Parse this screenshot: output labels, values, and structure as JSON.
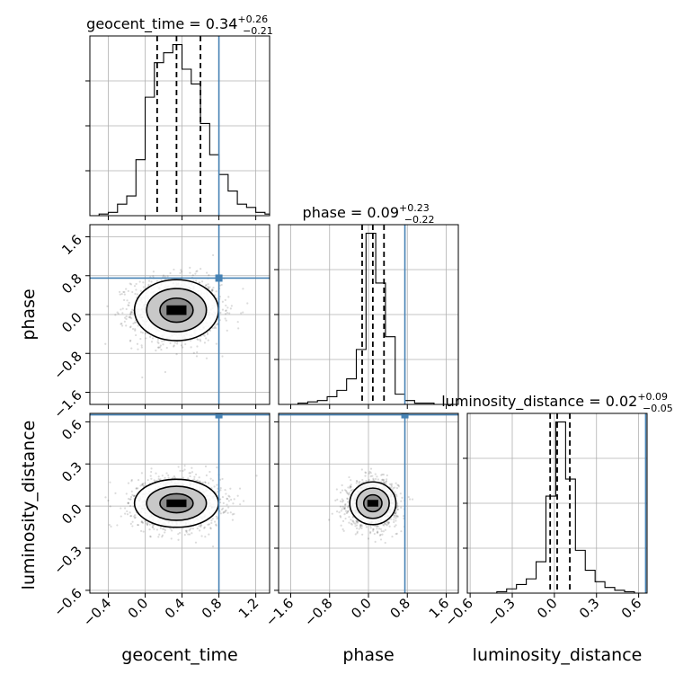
{
  "chart_data": {
    "type": "corner",
    "parameters": [
      "geocent_time",
      "phase",
      "luminosity_distance"
    ],
    "truths": [
      0.8,
      0.75,
      0.65
    ],
    "truth_color": "#4682b4",
    "line_color": "#000000",
    "titles": [
      {
        "name": "geocent_time",
        "median": "0.34",
        "plus": "+0.26",
        "minus": "−0.21"
      },
      {
        "name": "phase",
        "median": "0.09",
        "plus": "+0.23",
        "minus": "−0.22"
      },
      {
        "name": "luminosity_distance",
        "median": "0.02",
        "plus": "+0.09",
        "minus": "−0.05"
      }
    ],
    "ranges": [
      [
        -0.6,
        1.35
      ],
      [
        -1.85,
        1.85
      ],
      [
        -0.62,
        0.66
      ]
    ],
    "ticks": [
      {
        "values": [
          -0.4,
          0.0,
          0.4,
          0.8,
          1.2
        ],
        "labels": [
          "−0.4",
          "0.0",
          "0.4",
          "0.8",
          "1.2"
        ]
      },
      {
        "values": [
          -1.6,
          -0.8,
          0.0,
          0.8,
          1.6
        ],
        "labels": [
          "−1.6",
          "−0.8",
          "0.0",
          "0.8",
          "1.6"
        ]
      },
      {
        "values": [
          -0.6,
          -0.3,
          0.0,
          0.3,
          0.6
        ],
        "labels": [
          "−0.6",
          "−0.3",
          "0.0",
          "0.3",
          "0.6"
        ]
      }
    ],
    "histograms": [
      {
        "param": "geocent_time",
        "bin_edges": [
          -0.6,
          -0.5,
          -0.4,
          -0.3,
          -0.2,
          -0.1,
          0.0,
          0.1,
          0.2,
          0.3,
          0.4,
          0.5,
          0.6,
          0.7,
          0.8,
          0.9,
          1.0,
          1.1,
          1.2,
          1.3,
          1.35
        ],
        "counts": [
          0,
          1,
          2,
          7,
          12,
          34,
          72,
          93,
          99,
          104,
          89,
          80,
          56,
          37,
          25,
          15,
          7,
          5,
          2,
          1
        ],
        "quantiles": [
          0.13,
          0.34,
          0.6
        ]
      },
      {
        "param": "phase",
        "bin_edges": [
          -1.85,
          -1.65,
          -1.45,
          -1.25,
          -1.05,
          -0.85,
          -0.65,
          -0.45,
          -0.25,
          -0.05,
          0.15,
          0.35,
          0.55,
          0.75,
          0.95,
          1.15,
          1.35,
          1.55,
          1.85
        ],
        "counts": [
          0,
          0,
          1,
          2,
          3,
          6,
          11,
          20,
          43,
          134,
          95,
          53,
          8,
          3,
          1,
          1,
          0,
          0
        ],
        "quantiles": [
          -0.13,
          0.09,
          0.32
        ]
      },
      {
        "param": "luminosity_distance",
        "bin_edges": [
          -0.62,
          -0.55,
          -0.48,
          -0.41,
          -0.34,
          -0.27,
          -0.2,
          -0.13,
          -0.06,
          0.01,
          0.08,
          0.15,
          0.22,
          0.29,
          0.36,
          0.43,
          0.5,
          0.57,
          0.66
        ],
        "counts": [
          0,
          0,
          0,
          1,
          3,
          6,
          10,
          22,
          68,
          120,
          80,
          30,
          16,
          8,
          4,
          2,
          1,
          0
        ],
        "quantiles": [
          -0.03,
          0.02,
          0.11
        ]
      }
    ],
    "scatter_2d": [
      {
        "x": "geocent_time",
        "y": "phase",
        "center": [
          0.34,
          0.09
        ],
        "sigma": [
          0.24,
          0.33
        ],
        "n_points": 1500
      },
      {
        "x": "geocent_time",
        "y": "luminosity_distance",
        "center": [
          0.34,
          0.02
        ],
        "sigma": [
          0.24,
          0.09
        ],
        "n_points": 1500
      },
      {
        "x": "phase",
        "y": "luminosity_distance",
        "center": [
          0.09,
          0.02
        ],
        "sigma": [
          0.25,
          0.08
        ],
        "n_points": 1500
      }
    ],
    "grid": true
  }
}
